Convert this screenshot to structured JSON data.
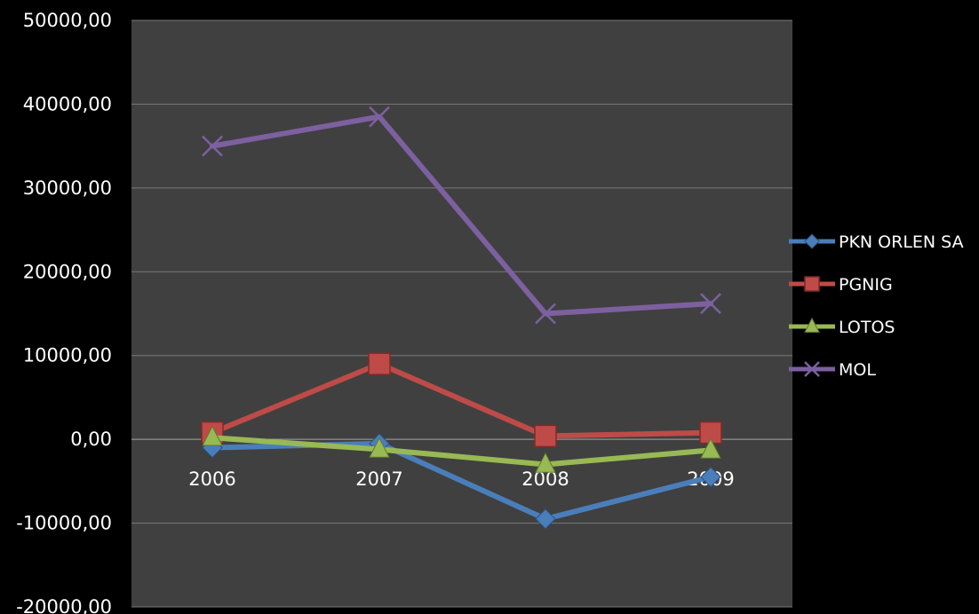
{
  "chart_data": {
    "type": "line",
    "categories": [
      "2006",
      "2007",
      "2008",
      "2009"
    ],
    "ylim": [
      -20000,
      50000
    ],
    "y_ticks": [
      "50000,00",
      "40000,00",
      "30000,00",
      "20000,00",
      "10000,00",
      "0,00",
      "-10000,00",
      "-20000,00"
    ],
    "grid": true,
    "legend_position": "right",
    "plot_background": "#404040",
    "series": [
      {
        "name": "PKN ORLEN SA",
        "color": "#4a7ebb",
        "marker": "diamond",
        "values": [
          -1000,
          -500,
          -9500,
          -4500
        ]
      },
      {
        "name": "PGNIG",
        "color": "#be4b48",
        "marker": "square",
        "values": [
          800,
          9000,
          400,
          800
        ]
      },
      {
        "name": "LOTOS",
        "color": "#98b954",
        "marker": "triangle",
        "values": [
          200,
          -1200,
          -3000,
          -1300
        ]
      },
      {
        "name": "MOL",
        "color": "#7d60a0",
        "marker": "x",
        "values": [
          35000,
          38500,
          15000,
          16200
        ]
      }
    ]
  }
}
